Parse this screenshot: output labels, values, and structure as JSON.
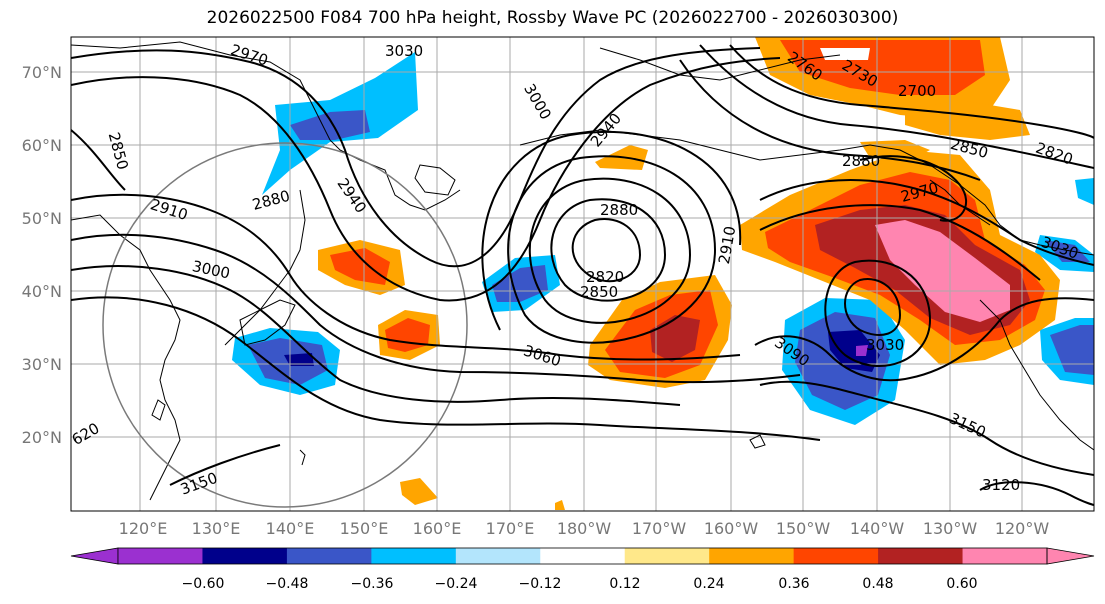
{
  "title": "2026022500 F084 700 hPa height, Rossby Wave PC (2026022700 - 2026030300)",
  "lat_labels": [
    "70°N",
    "60°N",
    "50°N",
    "40°N",
    "30°N",
    "20°N"
  ],
  "lon_labels": [
    "120°E",
    "130°E",
    "140°E",
    "150°E",
    "160°E",
    "170°E",
    "180°W",
    "170°W",
    "160°W",
    "150°W",
    "140°W",
    "130°W",
    "120°W"
  ],
  "colorbar": {
    "ticks": [
      "−0.60",
      "−0.48",
      "−0.36",
      "−0.24",
      "−0.12",
      "0.12",
      "0.24",
      "0.36",
      "0.48",
      "0.60"
    ],
    "colors": [
      "#9b30d0",
      "#00008b",
      "#3a56c8",
      "#00bfff",
      "#b3e5fc",
      "#ffffff",
      "#ffe88a",
      "#ffa500",
      "#ff4500",
      "#b22222",
      "#ff85b0",
      "#ff85b0"
    ]
  },
  "contour_labels": [
    "2970",
    "3030",
    "3000",
    "2940",
    "2850",
    "2880",
    "2910",
    "3000",
    "2940",
    "2880",
    "2820",
    "2850",
    "2910",
    "3060",
    "3090",
    "3030",
    "3150",
    "3150",
    "3120",
    "2760",
    "2730",
    "2700",
    "2880",
    "2850",
    "2820",
    "2970",
    "3030",
    "620"
  ]
}
